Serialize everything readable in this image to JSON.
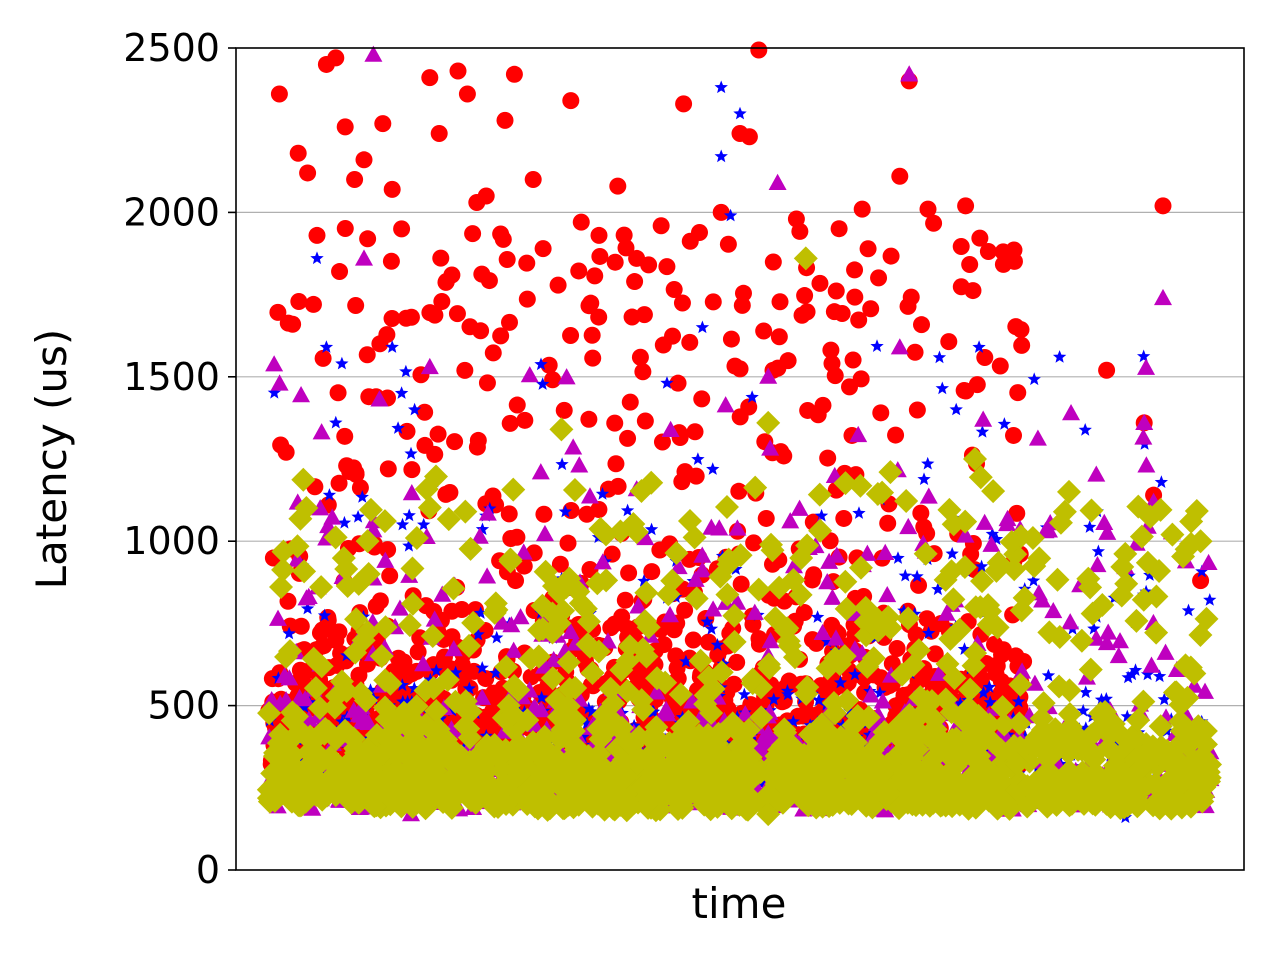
{
  "chart_data": {
    "type": "scatter",
    "title": "",
    "xlabel": "time",
    "ylabel": "Latency (us)",
    "ylim": [
      0,
      2500
    ],
    "yticks": [
      0,
      500,
      1000,
      1500,
      2000,
      2500
    ],
    "grid": "y-major",
    "x_ticks_shown": false,
    "legend": "none",
    "series": [
      {
        "marker": "circle",
        "color": "#ff0000",
        "x_span": [
          0.0,
          0.8
        ],
        "y_band": [
          300,
          1650
        ],
        "y_outlier_range": [
          1650,
          2500
        ],
        "points": [
          {
            "x": 0.01,
            "y": 2360
          },
          {
            "x": 0.03,
            "y": 2180
          },
          {
            "x": 0.04,
            "y": 2120
          },
          {
            "x": 0.05,
            "y": 1930
          },
          {
            "x": 0.06,
            "y": 2450
          },
          {
            "x": 0.07,
            "y": 2470
          },
          {
            "x": 0.08,
            "y": 2260
          },
          {
            "x": 0.09,
            "y": 2100
          },
          {
            "x": 0.1,
            "y": 2160
          },
          {
            "x": 0.12,
            "y": 2270
          },
          {
            "x": 0.13,
            "y": 2070
          },
          {
            "x": 0.14,
            "y": 1950
          },
          {
            "x": 0.17,
            "y": 2410
          },
          {
            "x": 0.18,
            "y": 2240
          },
          {
            "x": 0.2,
            "y": 2430
          },
          {
            "x": 0.21,
            "y": 2360
          },
          {
            "x": 0.22,
            "y": 2030
          },
          {
            "x": 0.23,
            "y": 2050
          },
          {
            "x": 0.25,
            "y": 2280
          },
          {
            "x": 0.26,
            "y": 2420
          },
          {
            "x": 0.28,
            "y": 2100
          },
          {
            "x": 0.32,
            "y": 2340
          },
          {
            "x": 0.35,
            "y": 1930
          },
          {
            "x": 0.37,
            "y": 2080
          },
          {
            "x": 0.39,
            "y": 1860
          },
          {
            "x": 0.44,
            "y": 2330
          },
          {
            "x": 0.48,
            "y": 2000
          },
          {
            "x": 0.5,
            "y": 2240
          },
          {
            "x": 0.51,
            "y": 2230
          },
          {
            "x": 0.52,
            "y": 2500
          },
          {
            "x": 0.56,
            "y": 1980
          },
          {
            "x": 0.63,
            "y": 2010
          },
          {
            "x": 0.67,
            "y": 2110
          },
          {
            "x": 0.68,
            "y": 2400
          },
          {
            "x": 0.7,
            "y": 2010
          },
          {
            "x": 0.74,
            "y": 2020
          },
          {
            "x": 0.78,
            "y": 1880
          },
          {
            "x": 0.89,
            "y": 1520
          },
          {
            "x": 0.93,
            "y": 1360
          },
          {
            "x": 0.94,
            "y": 1140
          },
          {
            "x": 0.99,
            "y": 880
          },
          {
            "x": 0.95,
            "y": 2020
          }
        ]
      },
      {
        "marker": "star",
        "color": "#0000ff",
        "x_span": [
          0.0,
          1.0
        ],
        "y_band": [
          220,
          1100
        ],
        "y_outlier_range": [
          1100,
          1600
        ],
        "points": [
          {
            "x": 0.05,
            "y": 1860
          },
          {
            "x": 0.06,
            "y": 1590
          },
          {
            "x": 0.07,
            "y": 1360
          },
          {
            "x": 0.13,
            "y": 1590
          },
          {
            "x": 0.14,
            "y": 1450
          },
          {
            "x": 0.48,
            "y": 2380
          },
          {
            "x": 0.48,
            "y": 2170
          },
          {
            "x": 0.49,
            "y": 1990
          },
          {
            "x": 0.5,
            "y": 2300
          },
          {
            "x": 0.46,
            "y": 1650
          },
          {
            "x": 0.73,
            "y": 1400
          },
          {
            "x": 0.84,
            "y": 1560
          },
          {
            "x": 0.88,
            "y": 1090
          },
          {
            "x": 0.99,
            "y": 720
          },
          {
            "x": 0.91,
            "y": 160
          }
        ]
      },
      {
        "marker": "triangle",
        "color": "#bf00bf",
        "x_span": [
          0.0,
          1.0
        ],
        "y_band": [
          180,
          1100
        ],
        "y_outlier_range": [
          1100,
          1550
        ],
        "points": [
          {
            "x": 0.11,
            "y": 2480
          },
          {
            "x": 0.1,
            "y": 1860
          },
          {
            "x": 0.54,
            "y": 2090
          },
          {
            "x": 0.68,
            "y": 2420
          },
          {
            "x": 0.93,
            "y": 1360
          },
          {
            "x": 0.95,
            "y": 1740
          },
          {
            "x": 0.94,
            "y": 1120
          },
          {
            "x": 0.67,
            "y": 1590
          },
          {
            "x": 0.17,
            "y": 1530
          },
          {
            "x": 0.15,
            "y": 170
          }
        ]
      },
      {
        "marker": "diamond",
        "color": "#bfbf00",
        "x_span": [
          0.0,
          1.0
        ],
        "y_band": [
          180,
          950
        ],
        "y_outlier_range": [
          950,
          1200
        ],
        "points": [
          {
            "x": 0.57,
            "y": 1860
          },
          {
            "x": 0.31,
            "y": 1340
          },
          {
            "x": 0.53,
            "y": 1360
          },
          {
            "x": 0.85,
            "y": 1150
          },
          {
            "x": 0.96,
            "y": 1020
          },
          {
            "x": 0.98,
            "y": 1060
          },
          {
            "x": 0.99,
            "y": 1000
          },
          {
            "x": 0.53,
            "y": 170
          },
          {
            "x": 0.66,
            "y": 1210
          },
          {
            "x": 0.75,
            "y": 1250
          }
        ]
      }
    ]
  }
}
